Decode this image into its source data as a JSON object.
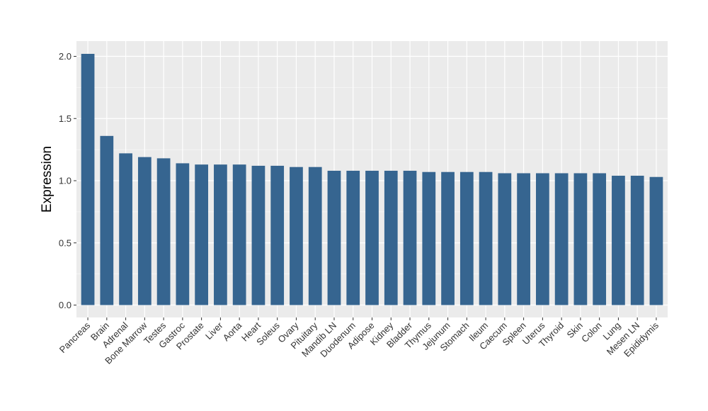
{
  "chart_data": {
    "type": "bar",
    "ylabel": "Expression",
    "xlabel": "",
    "title": "",
    "ylim": [
      0,
      2.05
    ],
    "yticks": [
      0.0,
      0.5,
      1.0,
      1.5,
      2.0
    ],
    "ytick_labels": [
      "0.0",
      "0.5",
      "1.0",
      "1.5",
      "2.0"
    ],
    "grid": true,
    "bar_color": "#366590",
    "panel_color": "#ebebeb",
    "grid_color": "#ffffff",
    "categories": [
      "Pancreas",
      "Brain",
      "Adrenal",
      "Bone Marrow",
      "Testes",
      "Gastroc",
      "Prostate",
      "Liver",
      "Aorta",
      "Heart",
      "Soleus",
      "Ovary",
      "Pituitary",
      "Mandib LN",
      "Duodenum",
      "Adipose",
      "Kidney",
      "Bladder",
      "Thymus",
      "Jejunum",
      "Stomach",
      "Ileum",
      "Caecum",
      "Spleen",
      "Uterus",
      "Thyroid",
      "Skin",
      "Colon",
      "Lung",
      "Mesen LN",
      "Epididymis"
    ],
    "values": [
      2.02,
      1.36,
      1.22,
      1.19,
      1.18,
      1.14,
      1.13,
      1.13,
      1.13,
      1.12,
      1.12,
      1.11,
      1.11,
      1.08,
      1.08,
      1.08,
      1.08,
      1.08,
      1.07,
      1.07,
      1.07,
      1.07,
      1.06,
      1.06,
      1.06,
      1.06,
      1.06,
      1.06,
      1.04,
      1.04,
      1.03
    ]
  }
}
